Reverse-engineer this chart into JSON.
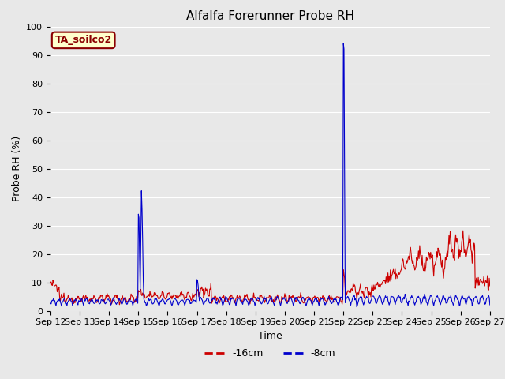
{
  "title": "Alfalfa Forerunner Probe RH",
  "xlabel": "Time",
  "ylabel": "Probe RH (%)",
  "ylim": [
    0,
    100
  ],
  "xlim": [
    0,
    360
  ],
  "x_tick_labels": [
    "Sep 12",
    "Sep 13",
    "Sep 14",
    "Sep 15",
    "Sep 16",
    "Sep 17",
    "Sep 18",
    "Sep 19",
    "Sep 20",
    "Sep 21",
    "Sep 22",
    "Sep 23",
    "Sep 24",
    "Sep 25",
    "Sep 26",
    "Sep 27"
  ],
  "x_tick_positions": [
    0,
    24,
    48,
    72,
    96,
    120,
    144,
    168,
    192,
    216,
    240,
    264,
    288,
    312,
    336,
    360
  ],
  "legend_labels": [
    "-16cm",
    "-8cm"
  ],
  "legend_colors": [
    "#cc0000",
    "#0000cc"
  ],
  "line_16cm_color": "#cc0000",
  "line_8cm_color": "#0000cc",
  "annotation_text": "TA_soilco2",
  "annotation_color": "#8b0000",
  "annotation_bg": "#ffffcc",
  "plot_bg_color": "#e8e8e8",
  "fig_bg_color": "#e8e8e8",
  "grid_color": "#ffffff",
  "title_fontsize": 11,
  "axis_fontsize": 9,
  "tick_fontsize": 8,
  "annot_fontsize": 9,
  "legend_fontsize": 9
}
